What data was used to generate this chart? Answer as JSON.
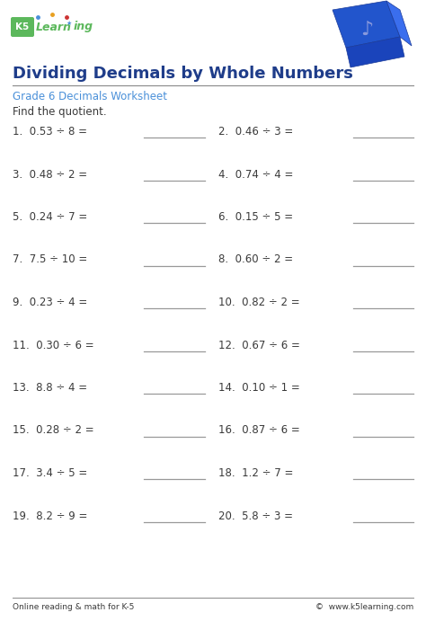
{
  "title": "Dividing Decimals by Whole Numbers",
  "subtitle": "Grade 6 Decimals Worksheet",
  "instruction": "Find the quotient.",
  "problems": [
    [
      "1.  0.53 ÷ 8 =",
      "2.  0.46 ÷ 3 ="
    ],
    [
      "3.  0.48 ÷ 2 =",
      "4.  0.74 ÷ 4 ="
    ],
    [
      "5.  0.24 ÷ 7 =",
      "6.  0.15 ÷ 5 ="
    ],
    [
      "7.  7.5 ÷ 10 =",
      "8.  0.60 ÷ 2 ="
    ],
    [
      "9.  0.23 ÷ 4 =",
      "10.  0.82 ÷ 2 ="
    ],
    [
      "11.  0.30 ÷ 6 =",
      "12.  0.67 ÷ 6 ="
    ],
    [
      "13.  8.8 ÷ 4 =",
      "14.  0.10 ÷ 1 ="
    ],
    [
      "15.  0.28 ÷ 2 =",
      "16.  0.87 ÷ 6 ="
    ],
    [
      "17.  3.4 ÷ 5 =",
      "18.  1.2 ÷ 7 ="
    ],
    [
      "19.  8.2 ÷ 9 =",
      "20.  5.8 ÷ 3 ="
    ]
  ],
  "footer_left": "Online reading & math for K-5",
  "footer_right": "©  www.k5learning.com",
  "bg_color": "#ffffff",
  "title_color": "#1f3d8a",
  "subtitle_color": "#4a90d9",
  "text_color": "#3a3a3a",
  "line_color": "#999999",
  "divider_color": "#888888",
  "logo_green": "#5cb85c",
  "logo_blue": "#4a90d9",
  "shape_color1": "#2255cc",
  "shape_color2": "#3a6eee",
  "shape_color3": "#1a44bb"
}
